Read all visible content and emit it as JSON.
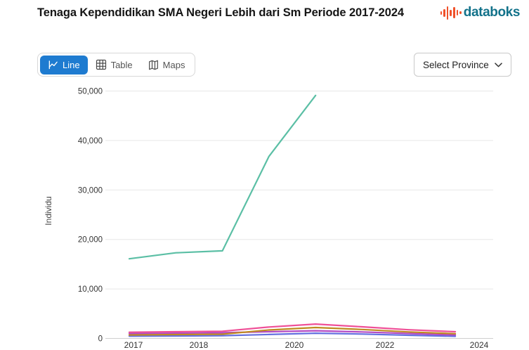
{
  "header": {
    "title": "Tenaga Kependidikan SMA Negeri Lebih dari Sm Periode 2017-2024",
    "logo_text": "databoks",
    "logo_icon": "audio-bars-icon",
    "logo_text_color": "#12728a",
    "logo_icon_color": "#f0512a"
  },
  "toolbar": {
    "tabs": [
      {
        "label": "Line",
        "icon": "line-chart-icon",
        "active": true
      },
      {
        "label": "Table",
        "icon": "table-icon",
        "active": false
      },
      {
        "label": "Maps",
        "icon": "map-icon",
        "active": false
      }
    ],
    "active_tab_color": "#1e7bd0",
    "province_selector": {
      "label": "Select Province",
      "icon": "chevron-down-icon"
    }
  },
  "chart_data": {
    "type": "line",
    "title": "Tenaga Kependidikan SMA Negeri Lebih dari Sm Periode 2017-2024",
    "xlabel": "",
    "ylabel": "Individu",
    "ylim": [
      0,
      50000
    ],
    "grid": "horizontal",
    "legend": "none",
    "x": [
      2017,
      2018,
      2019,
      2020,
      2021,
      2022,
      2023,
      2024
    ],
    "x_tick_labels": [
      "2017",
      "2018",
      "2020",
      "2022",
      "2024"
    ],
    "y_tick_values": [
      0,
      10000,
      20000,
      30000,
      40000,
      50000
    ],
    "y_tick_labels": [
      "0",
      "10,000",
      "20,000",
      "30,000",
      "40,000",
      "50,000"
    ],
    "series": [
      {
        "name": "series-teal",
        "color": "#5bbfa5",
        "values": [
          16100,
          17300,
          17700,
          36800,
          49100,
          null,
          null,
          null
        ]
      },
      {
        "name": "series-pink",
        "color": "#ef5097",
        "values": [
          1250,
          1350,
          1450,
          2300,
          2900,
          2350,
          1750,
          1350
        ]
      },
      {
        "name": "series-orange",
        "color": "#bf8b21",
        "values": [
          700,
          780,
          850,
          1700,
          2200,
          1800,
          1300,
          950
        ]
      },
      {
        "name": "series-magenta",
        "color": "#b44bc4",
        "values": [
          1000,
          1050,
          1150,
          1350,
          1550,
          1300,
          1000,
          700
        ]
      },
      {
        "name": "series-blue",
        "color": "#6470e0",
        "values": [
          450,
          500,
          550,
          800,
          1050,
          880,
          640,
          420
        ]
      }
    ]
  }
}
